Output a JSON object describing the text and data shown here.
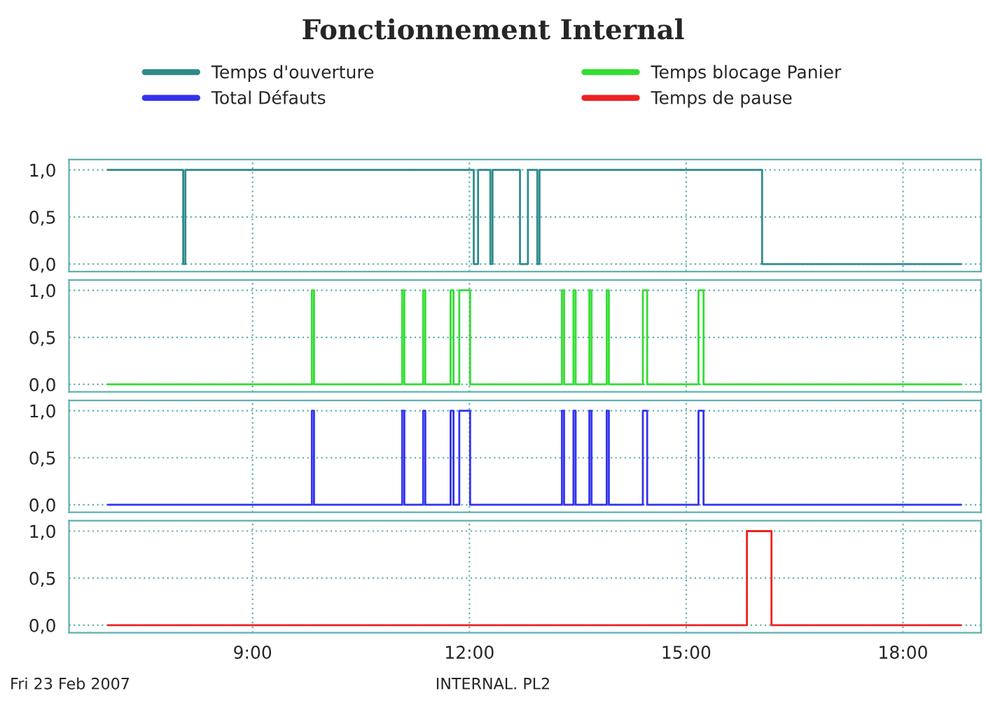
{
  "chart_data": [
    {
      "type": "step",
      "title": "Fonctionnement Internal",
      "legend": "top",
      "grid": true,
      "tick_labels": "y",
      "xlim": [
        6.46,
        19.08
      ],
      "xticks": [
        9,
        12,
        15,
        18
      ],
      "ylim": [
        -0.08,
        1.11
      ],
      "yticks": [
        {
          "value": 0,
          "label": "0,0"
        },
        {
          "value": 0.5,
          "label": "0,5"
        },
        {
          "value": 1,
          "label": "1,0"
        }
      ],
      "series": [
        {
          "name": "Temps d'ouverture",
          "color": "#2e8b8b",
          "x": [
            7.0,
            8.04,
            8.07,
            12.06,
            12.12,
            12.29,
            12.32,
            12.7,
            12.81,
            12.94,
            12.97,
            16.05,
            18.8
          ],
          "values": [
            1,
            0,
            1,
            0,
            1,
            0,
            1,
            0,
            1,
            0,
            1,
            0,
            0
          ]
        }
      ]
    },
    {
      "type": "step",
      "legend": "top",
      "grid": true,
      "tick_labels": "y",
      "xlim": [
        6.46,
        19.08
      ],
      "xticks": [
        9,
        12,
        15,
        18
      ],
      "ylim": [
        -0.08,
        1.11
      ],
      "yticks": [
        {
          "value": 0,
          "label": "0,0"
        },
        {
          "value": 0.5,
          "label": "0,5"
        },
        {
          "value": 1,
          "label": "1,0"
        }
      ],
      "series": [
        {
          "name": "Temps blocage Panier",
          "color": "#33dd33",
          "x": [
            7.0,
            9.82,
            9.85,
            11.07,
            11.1,
            11.36,
            11.39,
            11.74,
            11.78,
            11.86,
            12.01,
            13.28,
            13.31,
            13.44,
            13.47,
            13.66,
            13.69,
            13.9,
            13.93,
            14.4,
            14.46,
            15.17,
            15.24,
            18.8
          ],
          "values": [
            0,
            1,
            0,
            1,
            0,
            1,
            0,
            1,
            0,
            1,
            0,
            1,
            0,
            1,
            0,
            1,
            0,
            1,
            0,
            1,
            0,
            1,
            0,
            0
          ]
        }
      ]
    },
    {
      "type": "step",
      "legend": "top",
      "grid": true,
      "tick_labels": "y",
      "xlim": [
        6.46,
        19.08
      ],
      "xticks": [
        9,
        12,
        15,
        18
      ],
      "ylim": [
        -0.08,
        1.11
      ],
      "yticks": [
        {
          "value": 0,
          "label": "0,0"
        },
        {
          "value": 0.5,
          "label": "0,5"
        },
        {
          "value": 1,
          "label": "1,0"
        }
      ],
      "series": [
        {
          "name": "Total Défauts",
          "color": "#3333ee",
          "x": [
            7.0,
            9.82,
            9.85,
            11.07,
            11.1,
            11.36,
            11.39,
            11.74,
            11.78,
            11.86,
            12.01,
            13.28,
            13.31,
            13.44,
            13.47,
            13.66,
            13.69,
            13.9,
            13.93,
            14.4,
            14.46,
            15.17,
            15.24,
            18.8
          ],
          "values": [
            0,
            1,
            0,
            1,
            0,
            1,
            0,
            1,
            0,
            1,
            0,
            1,
            0,
            1,
            0,
            1,
            0,
            1,
            0,
            1,
            0,
            1,
            0,
            0
          ]
        }
      ]
    },
    {
      "type": "step",
      "legend": "top",
      "grid": true,
      "xlim": [
        6.46,
        19.08
      ],
      "xticks": [
        {
          "value": 9,
          "label": "9:00"
        },
        {
          "value": 12,
          "label": "12:00"
        },
        {
          "value": 15,
          "label": "15:00"
        },
        {
          "value": 18,
          "label": "18:00"
        }
      ],
      "ylim": [
        -0.08,
        1.11
      ],
      "yticks": [
        {
          "value": 0,
          "label": "0,0"
        },
        {
          "value": 0.5,
          "label": "0,5"
        },
        {
          "value": 1,
          "label": "1,0"
        }
      ],
      "annotations": [
        "Fri 23 Feb 2007",
        "INTERNAL. PL2"
      ],
      "series": [
        {
          "name": "Temps de pause",
          "color": "#ee2222",
          "x": [
            7.0,
            15.84,
            16.18,
            18.8
          ],
          "values": [
            0,
            1,
            0,
            0
          ]
        }
      ]
    }
  ]
}
